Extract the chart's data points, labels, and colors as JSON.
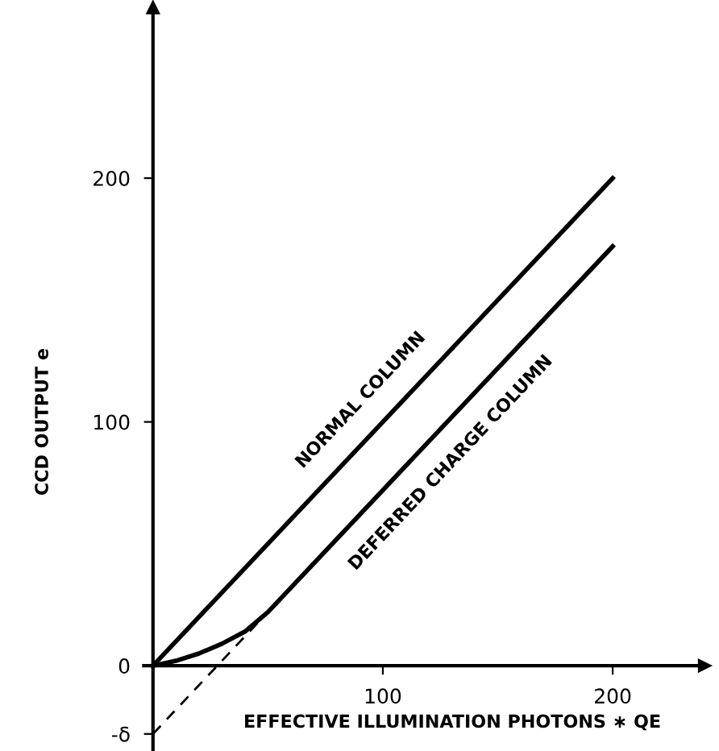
{
  "chart_data": {
    "type": "line",
    "xlabel": "EFFECTIVE ILLUMINATION PHOTONS ∗ QE",
    "ylabel": "CCD OUTPUT e",
    "xlim": [
      -4,
      240
    ],
    "ylim": [
      -35,
      270
    ],
    "xticks": [
      100,
      200
    ],
    "yticks": [
      {
        "value": -28,
        "label": "-δ"
      },
      0,
      100,
      200
    ],
    "grid": false,
    "legend": false,
    "marker": "none",
    "series": [
      {
        "color": "#000000",
        "line_style": "solid",
        "x": [
          0,
          200
        ],
        "values": [
          0,
          200
        ]
      },
      {
        "color": "#000000",
        "line_style": "solid",
        "x": [
          0,
          10,
          20,
          30,
          40,
          50,
          200
        ],
        "values": [
          0,
          2,
          5,
          9,
          14,
          22,
          172
        ]
      },
      {
        "color": "#000000",
        "line_style": "dashed",
        "x": [
          0,
          50
        ],
        "values": [
          -28,
          22
        ]
      }
    ],
    "annotations": [
      {
        "text": "NORMAL COLUMN",
        "x": 100,
        "y": 100
      },
      {
        "text": "DEFERRED CHARGE COLUMN",
        "x": 120,
        "y": 92
      }
    ]
  }
}
